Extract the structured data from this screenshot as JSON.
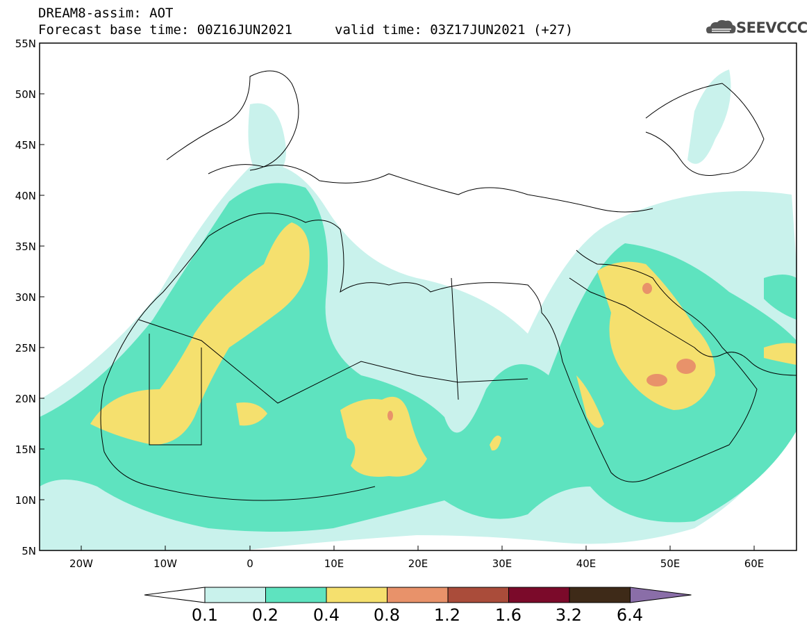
{
  "header": {
    "line1": "DREAM8-assim: AOT",
    "line2": "Forecast base time: 00Z16JUN2021",
    "valid": "valid time: 03Z17JUN2021 (+27)",
    "logo": "SEEVCCC"
  },
  "map": {
    "lat_labels": [
      "55N",
      "50N",
      "45N",
      "40N",
      "35N",
      "30N",
      "25N",
      "20N",
      "15N",
      "10N",
      "5N"
    ],
    "lon_labels": [
      "20W",
      "10W",
      "0",
      "10E",
      "20E",
      "30E",
      "40E",
      "50E",
      "60E"
    ],
    "lon_range": [
      -25,
      65
    ],
    "lat_range": [
      5,
      55
    ]
  },
  "legend": {
    "levels": [
      "0.1",
      "0.2",
      "0.4",
      "0.8",
      "1.2",
      "1.6",
      "3.2",
      "6.4"
    ],
    "colors": [
      "#ffffff",
      "#c9f2ec",
      "#5ee3bf",
      "#f5e06e",
      "#e8926a",
      "#aa4c3a",
      "#7b0a2a",
      "#3e2a18",
      "#8a6ea8"
    ]
  }
}
